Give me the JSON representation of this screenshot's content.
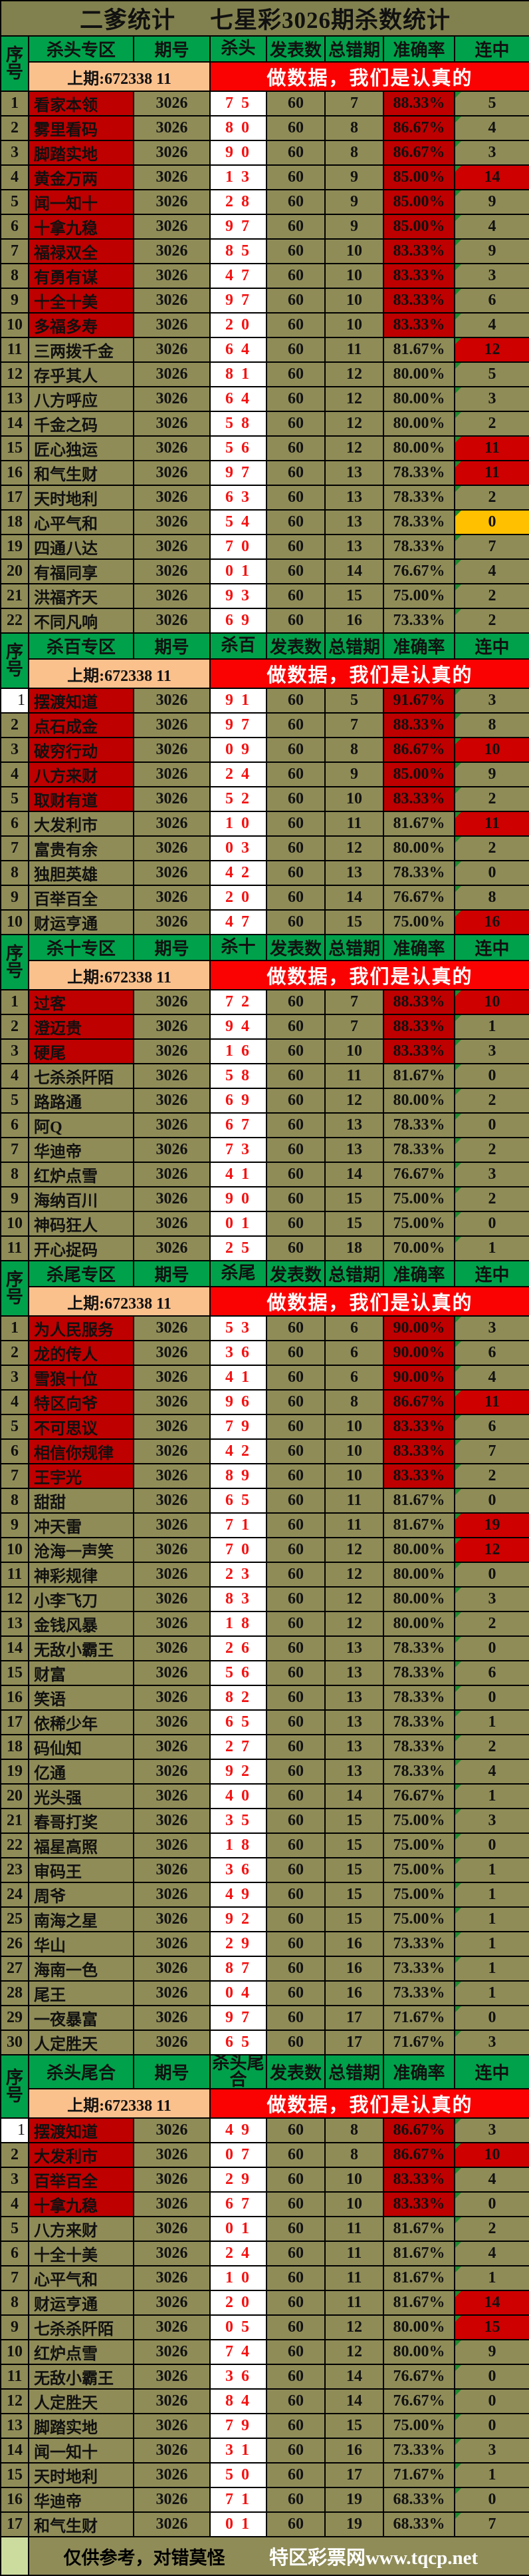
{
  "title": {
    "left": "二爹统计",
    "right": "七星彩3026期杀数统计"
  },
  "columns": {
    "index_top": "序",
    "index_bottom": "号",
    "issue": "期号",
    "pub": "发表数",
    "err": "总错期",
    "acc": "准确率",
    "streak": "连中"
  },
  "banner": {
    "prev_label": "上期:672338 11",
    "slogan": "做数据，我们是认真的"
  },
  "footer": {
    "note": "仅供参考，对错莫怪",
    "site": "特区彩票网www.tqcp.net",
    "left_cell": ""
  },
  "colors": {
    "olive_bg": "#8F8C58",
    "title_bg": "#81804F",
    "header_green": "#00A14B",
    "index_light_green": "#CCDC9E",
    "prev_orange": "#FBC18D",
    "banner_red": "#FB0202",
    "highlight_red": "#BE0000",
    "streak_red": "#CE0000",
    "streak_yellow": "#FFC000",
    "kill_digit_red": "#F51111",
    "triangle_green": "#1F8A2E"
  },
  "sections": [
    {
      "zone": "杀头专区",
      "kill_col": "杀头",
      "rows": [
        [
          1,
          "看家本领",
          "3026",
          "7 5",
          60,
          7,
          "88.33%",
          5
        ],
        [
          2,
          "雾里看码",
          "3026",
          "8 0",
          60,
          8,
          "86.67%",
          4
        ],
        [
          3,
          "脚踏实地",
          "3026",
          "9 0",
          60,
          8,
          "86.67%",
          3
        ],
        [
          4,
          "黄金万两",
          "3026",
          "1 3",
          60,
          9,
          "85.00%",
          14
        ],
        [
          5,
          "闻一知十",
          "3026",
          "2 8",
          60,
          9,
          "85.00%",
          9
        ],
        [
          6,
          "十拿九稳",
          "3026",
          "9 7",
          60,
          9,
          "85.00%",
          4
        ],
        [
          7,
          "福禄双全",
          "3026",
          "8 5",
          60,
          10,
          "83.33%",
          9
        ],
        [
          8,
          "有勇有谋",
          "3026",
          "4 7",
          60,
          10,
          "83.33%",
          3
        ],
        [
          9,
          "十全十美",
          "3026",
          "9 7",
          60,
          10,
          "83.33%",
          6
        ],
        [
          10,
          "多福多寿",
          "3026",
          "2 0",
          60,
          10,
          "83.33%",
          4
        ],
        [
          11,
          "三两拨千金",
          "3026",
          "6 4",
          60,
          11,
          "81.67%",
          12
        ],
        [
          12,
          "存乎其人",
          "3026",
          "8 1",
          60,
          12,
          "80.00%",
          5
        ],
        [
          13,
          "八方呼应",
          "3026",
          "6 4",
          60,
          12,
          "80.00%",
          3
        ],
        [
          14,
          "千金之码",
          "3026",
          "5 8",
          60,
          12,
          "80.00%",
          2
        ],
        [
          15,
          "匠心独运",
          "3026",
          "5 6",
          60,
          12,
          "80.00%",
          11
        ],
        [
          16,
          "和气生财",
          "3026",
          "9 7",
          60,
          13,
          "78.33%",
          11
        ],
        [
          17,
          "天时地利",
          "3026",
          "6 3",
          60,
          13,
          "78.33%",
          2
        ],
        [
          18,
          "心平气和",
          "3026",
          "5 4",
          60,
          13,
          "78.33%",
          0,
          "y"
        ],
        [
          19,
          "四通八达",
          "3026",
          "7 0",
          60,
          13,
          "78.33%",
          7
        ],
        [
          20,
          "有福同享",
          "3026",
          "0 1",
          60,
          14,
          "76.67%",
          4
        ],
        [
          21,
          "洪福齐天",
          "3026",
          "9 3",
          60,
          15,
          "75.00%",
          2
        ],
        [
          22,
          "不同凡响",
          "3026",
          "6 9",
          60,
          16,
          "73.33%",
          2
        ]
      ]
    },
    {
      "zone": "杀百专区",
      "kill_col": "杀百",
      "rows": [
        [
          1,
          "摆渡知道",
          "3026",
          "9 1",
          60,
          5,
          "91.67%",
          3,
          "nw"
        ],
        [
          2,
          "点石成金",
          "3026",
          "9 7",
          60,
          7,
          "88.33%",
          8
        ],
        [
          3,
          "破穷行动",
          "3026",
          "0 9",
          60,
          8,
          "86.67%",
          10
        ],
        [
          4,
          "八方来财",
          "3026",
          "2 4",
          60,
          9,
          "85.00%",
          9
        ],
        [
          5,
          "取财有道",
          "3026",
          "5 2",
          60,
          10,
          "83.33%",
          2
        ],
        [
          6,
          "大发利市",
          "3026",
          "1 0",
          60,
          11,
          "81.67%",
          11
        ],
        [
          7,
          "富贵有余",
          "3026",
          "0 3",
          60,
          12,
          "80.00%",
          2
        ],
        [
          8,
          "独胆英雄",
          "3026",
          "4 2",
          60,
          13,
          "78.33%",
          0
        ],
        [
          9,
          "百举百全",
          "3026",
          "2 0",
          60,
          14,
          "76.67%",
          8
        ],
        [
          10,
          "财运亨通",
          "3026",
          "4 7",
          60,
          15,
          "75.00%",
          16
        ]
      ]
    },
    {
      "zone": "杀十专区",
      "kill_col": "杀十",
      "rows": [
        [
          1,
          "过客",
          "3026",
          "7 2",
          60,
          7,
          "88.33%",
          10
        ],
        [
          2,
          "澄迈贵",
          "3026",
          "9 4",
          60,
          7,
          "88.33%",
          1
        ],
        [
          3,
          "硬尾",
          "3026",
          "1 6",
          60,
          10,
          "83.33%",
          3
        ],
        [
          4,
          "七杀杀阡陌",
          "3026",
          "5 8",
          60,
          11,
          "81.67%",
          0
        ],
        [
          5,
          "路路通",
          "3026",
          "6 9",
          60,
          12,
          "80.00%",
          2
        ],
        [
          6,
          "阿Q",
          "3026",
          "6 7",
          60,
          13,
          "78.33%",
          0
        ],
        [
          7,
          "华迪帝",
          "3026",
          "7 3",
          60,
          13,
          "78.33%",
          2
        ],
        [
          8,
          "红炉点雪",
          "3026",
          "4 1",
          60,
          14,
          "76.67%",
          3
        ],
        [
          9,
          "海纳百川",
          "3026",
          "9 0",
          60,
          15,
          "75.00%",
          2
        ],
        [
          10,
          "神码狂人",
          "3026",
          "0 1",
          60,
          15,
          "75.00%",
          0
        ],
        [
          11,
          "开心捉码",
          "3026",
          "2 5",
          60,
          18,
          "70.00%",
          1
        ]
      ]
    },
    {
      "zone": "杀尾专区",
      "kill_col": "杀尾",
      "rows": [
        [
          1,
          "为人民服务",
          "3026",
          "5 3",
          60,
          6,
          "90.00%",
          3
        ],
        [
          2,
          "龙的传人",
          "3026",
          "3 6",
          60,
          6,
          "90.00%",
          6
        ],
        [
          3,
          "雪狼十位",
          "3026",
          "4 1",
          60,
          6,
          "90.00%",
          4
        ],
        [
          4,
          "特区向爷",
          "3026",
          "9 6",
          60,
          8,
          "86.67%",
          11
        ],
        [
          5,
          "不可思议",
          "3026",
          "7 9",
          60,
          10,
          "83.33%",
          6
        ],
        [
          6,
          "相信你规律",
          "3026",
          "4 2",
          60,
          10,
          "83.33%",
          7
        ],
        [
          7,
          "王宇光",
          "3026",
          "8 9",
          60,
          10,
          "83.33%",
          2
        ],
        [
          8,
          "甜甜",
          "3026",
          "6 5",
          60,
          11,
          "81.67%",
          0
        ],
        [
          9,
          "冲天雷",
          "3026",
          "7 1",
          60,
          11,
          "81.67%",
          19
        ],
        [
          10,
          "沧海一声笑",
          "3026",
          "7 0",
          60,
          12,
          "80.00%",
          12
        ],
        [
          11,
          "神彩规律",
          "3026",
          "2 3",
          60,
          12,
          "80.00%",
          0
        ],
        [
          12,
          "小李飞刀",
          "3026",
          "8 3",
          60,
          12,
          "80.00%",
          3
        ],
        [
          13,
          "金钱风暴",
          "3026",
          "1 8",
          60,
          12,
          "80.00%",
          2
        ],
        [
          14,
          "无敌小霸王",
          "3026",
          "2 6",
          60,
          13,
          "78.33%",
          0
        ],
        [
          15,
          "财富",
          "3026",
          "5 6",
          60,
          13,
          "78.33%",
          6
        ],
        [
          16,
          "笑语",
          "3026",
          "8 2",
          60,
          13,
          "78.33%",
          0
        ],
        [
          17,
          "依稀少年",
          "3026",
          "6 5",
          60,
          13,
          "78.33%",
          1
        ],
        [
          18,
          "码仙知",
          "3026",
          "2 7",
          60,
          13,
          "78.33%",
          2
        ],
        [
          19,
          "亿通",
          "3026",
          "9 2",
          60,
          13,
          "78.33%",
          4
        ],
        [
          20,
          "光头强",
          "3026",
          "4 0",
          60,
          14,
          "76.67%",
          1
        ],
        [
          21,
          "春哥打奖",
          "3026",
          "3 5",
          60,
          15,
          "75.00%",
          3
        ],
        [
          22,
          "福星高照",
          "3026",
          "1 8",
          60,
          15,
          "75.00%",
          0
        ],
        [
          23,
          "审码王",
          "3026",
          "3 6",
          60,
          15,
          "75.00%",
          1
        ],
        [
          24,
          "周爷",
          "3026",
          "4 9",
          60,
          15,
          "75.00%",
          1
        ],
        [
          25,
          "南海之星",
          "3026",
          "9 2",
          60,
          15,
          "75.00%",
          1
        ],
        [
          26,
          "华山",
          "3026",
          "2 9",
          60,
          16,
          "73.33%",
          1
        ],
        [
          27,
          "海南一色",
          "3026",
          "8 7",
          60,
          16,
          "73.33%",
          1
        ],
        [
          28,
          "尾王",
          "3026",
          "0 4",
          60,
          16,
          "73.33%",
          1
        ],
        [
          29,
          "一夜暴富",
          "3026",
          "9 7",
          60,
          17,
          "71.67%",
          0
        ],
        [
          30,
          "人定胜天",
          "3026",
          "6 5",
          60,
          17,
          "71.67%",
          3
        ]
      ]
    },
    {
      "zone": "杀头尾合",
      "kill_col": "杀头尾合",
      "rows": [
        [
          1,
          "摆渡知道",
          "3026",
          "4 9",
          60,
          8,
          "86.67%",
          3,
          "nw"
        ],
        [
          2,
          "大发利市",
          "3026",
          "0 7",
          60,
          8,
          "86.67%",
          10
        ],
        [
          3,
          "百举百全",
          "3026",
          "2 9",
          60,
          10,
          "83.33%",
          4
        ],
        [
          4,
          "十拿九稳",
          "3026",
          "6 7",
          60,
          10,
          "83.33%",
          0
        ],
        [
          5,
          "八方来财",
          "3026",
          "0 1",
          60,
          11,
          "81.67%",
          2
        ],
        [
          6,
          "十全十美",
          "3026",
          "2 4",
          60,
          11,
          "81.67%",
          4
        ],
        [
          7,
          "心平气和",
          "3026",
          "1 0",
          60,
          11,
          "81.67%",
          1
        ],
        [
          8,
          "财运亨通",
          "3026",
          "2 0",
          60,
          11,
          "81.67%",
          14
        ],
        [
          9,
          "七杀杀阡陌",
          "3026",
          "0 5",
          60,
          12,
          "80.00%",
          15
        ],
        [
          10,
          "红炉点雪",
          "3026",
          "7 4",
          60,
          12,
          "80.00%",
          9
        ],
        [
          11,
          "无敌小霸王",
          "3026",
          "3 6",
          60,
          14,
          "76.67%",
          0
        ],
        [
          12,
          "人定胜天",
          "3026",
          "8 4",
          60,
          14,
          "76.67%",
          0
        ],
        [
          13,
          "脚踏实地",
          "3026",
          "7 9",
          60,
          15,
          "75.00%",
          0
        ],
        [
          14,
          "闻一知十",
          "3026",
          "3 1",
          60,
          16,
          "73.33%",
          3
        ],
        [
          15,
          "天时地利",
          "3026",
          "5 0",
          60,
          17,
          "71.67%",
          1
        ],
        [
          16,
          "华迪帝",
          "3026",
          "7 1",
          60,
          19,
          "68.33%",
          0
        ],
        [
          17,
          "和气生财",
          "3026",
          "0 1",
          60,
          19,
          "68.33%",
          7
        ]
      ]
    }
  ]
}
